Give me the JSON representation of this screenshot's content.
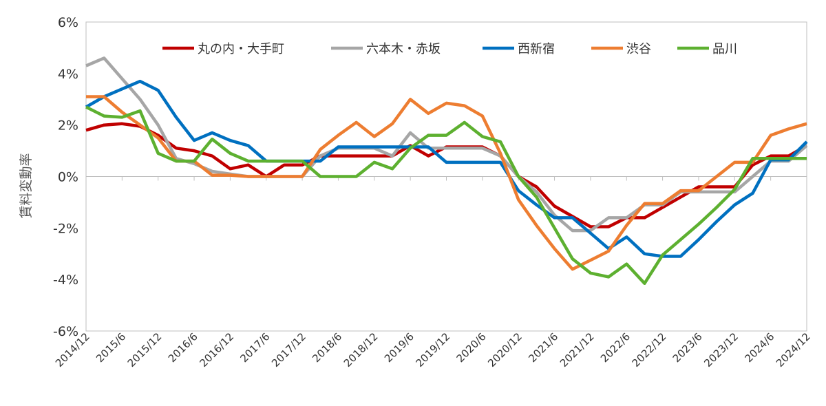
{
  "chart_data": {
    "type": "line",
    "title": "",
    "xlabel": "",
    "ylabel": "賃料変動率",
    "ylim": [
      -6,
      6
    ],
    "y_ticks": [
      {
        "value": 6,
        "label": "6%"
      },
      {
        "value": 4,
        "label": "4%"
      },
      {
        "value": 2,
        "label": "2%"
      },
      {
        "value": 0,
        "label": "0%"
      },
      {
        "value": -2,
        "label": "-2%"
      },
      {
        "value": -4,
        "label": "-4%"
      },
      {
        "value": -6,
        "label": "-6%"
      }
    ],
    "x_tick_labels": [
      "2014/12",
      "2015/6",
      "2015/12",
      "2016/6",
      "2016/12",
      "2017/6",
      "2017/12",
      "2018/6",
      "2018/12",
      "2019/6",
      "2019/12",
      "2020/6",
      "2020/12",
      "2021/6",
      "2021/12",
      "2022/6",
      "2022/12",
      "2023/6",
      "2023/12",
      "2024/6",
      "2024/12"
    ],
    "legend_position": "top",
    "grid": false,
    "x": [
      "2014/12",
      "2015/3",
      "2015/6",
      "2015/9",
      "2015/12",
      "2016/3",
      "2016/6",
      "2016/9",
      "2016/12",
      "2017/3",
      "2017/6",
      "2017/9",
      "2017/12",
      "2018/3",
      "2018/6",
      "2018/9",
      "2018/12",
      "2019/3",
      "2019/6",
      "2019/9",
      "2019/12",
      "2020/3",
      "2020/6",
      "2020/9",
      "2020/12",
      "2021/3",
      "2021/6",
      "2021/9",
      "2021/12",
      "2022/3",
      "2022/6",
      "2022/9",
      "2022/12",
      "2023/3",
      "2023/6",
      "2023/9",
      "2023/12",
      "2024/3",
      "2024/6",
      "2024/9",
      "2024/12"
    ],
    "series": [
      {
        "name": "丸の内・大手町",
        "color": "#C00000",
        "values": [
          1.8,
          2.0,
          2.05,
          1.95,
          1.6,
          1.1,
          1.0,
          0.8,
          0.3,
          0.45,
          0.0,
          0.45,
          0.45,
          0.8,
          0.8,
          0.8,
          0.8,
          0.8,
          1.2,
          0.8,
          1.15,
          1.15,
          1.15,
          0.8,
          0.0,
          -0.4,
          -1.15,
          -1.55,
          -1.95,
          -1.95,
          -1.6,
          -1.6,
          -1.2,
          -0.8,
          -0.4,
          -0.4,
          -0.4,
          0.45,
          0.8,
          0.8,
          1.2
        ]
      },
      {
        "name": "六本木・赤坂",
        "color": "#A6A6A6",
        "values": [
          4.3,
          4.6,
          3.8,
          3.0,
          2.0,
          0.7,
          0.5,
          0.2,
          0.1,
          0.0,
          0.0,
          0.0,
          0.0,
          0.8,
          1.1,
          1.1,
          1.1,
          0.8,
          1.7,
          1.1,
          1.1,
          1.1,
          1.1,
          0.8,
          0.0,
          -0.6,
          -1.5,
          -2.1,
          -2.1,
          -1.6,
          -1.6,
          -1.1,
          -1.1,
          -0.6,
          -0.6,
          -0.6,
          -0.6,
          0.0,
          0.6,
          0.6,
          1.2
        ]
      },
      {
        "name": "西新宿",
        "color": "#0070C0",
        "values": [
          2.7,
          3.1,
          3.4,
          3.7,
          3.35,
          2.3,
          1.4,
          1.7,
          1.4,
          1.2,
          0.6,
          0.6,
          0.6,
          0.6,
          1.15,
          1.15,
          1.15,
          1.15,
          1.15,
          1.15,
          0.55,
          0.55,
          0.55,
          0.55,
          -0.55,
          -1.1,
          -1.6,
          -1.6,
          -2.2,
          -2.8,
          -2.35,
          -3.0,
          -3.1,
          -3.1,
          -2.45,
          -1.75,
          -1.1,
          -0.65,
          0.65,
          0.65,
          1.35
        ]
      },
      {
        "name": "渋谷",
        "color": "#ED7D31",
        "values": [
          3.1,
          3.1,
          2.5,
          2.0,
          1.5,
          0.6,
          0.6,
          0.05,
          0.05,
          0.0,
          0.0,
          0.0,
          0.0,
          1.05,
          1.6,
          2.1,
          1.55,
          2.05,
          3.0,
          2.45,
          2.85,
          2.75,
          2.35,
          0.9,
          -0.9,
          -1.9,
          -2.8,
          -3.6,
          -3.25,
          -2.9,
          -1.9,
          -1.05,
          -1.05,
          -0.55,
          -0.55,
          0.0,
          0.55,
          0.55,
          1.6,
          1.85,
          2.05
        ]
      },
      {
        "name": "品川",
        "color": "#5DB030",
        "values": [
          2.7,
          2.35,
          2.3,
          2.55,
          0.9,
          0.6,
          0.6,
          1.45,
          0.9,
          0.6,
          0.6,
          0.6,
          0.6,
          0.0,
          0.0,
          0.0,
          0.55,
          0.3,
          1.1,
          1.6,
          1.6,
          2.1,
          1.55,
          1.35,
          0.0,
          -0.8,
          -2.0,
          -3.2,
          -3.75,
          -3.9,
          -3.4,
          -4.15,
          -3.05,
          -2.45,
          -1.85,
          -1.2,
          -0.5,
          0.7,
          0.7,
          0.7,
          0.7
        ]
      }
    ]
  }
}
